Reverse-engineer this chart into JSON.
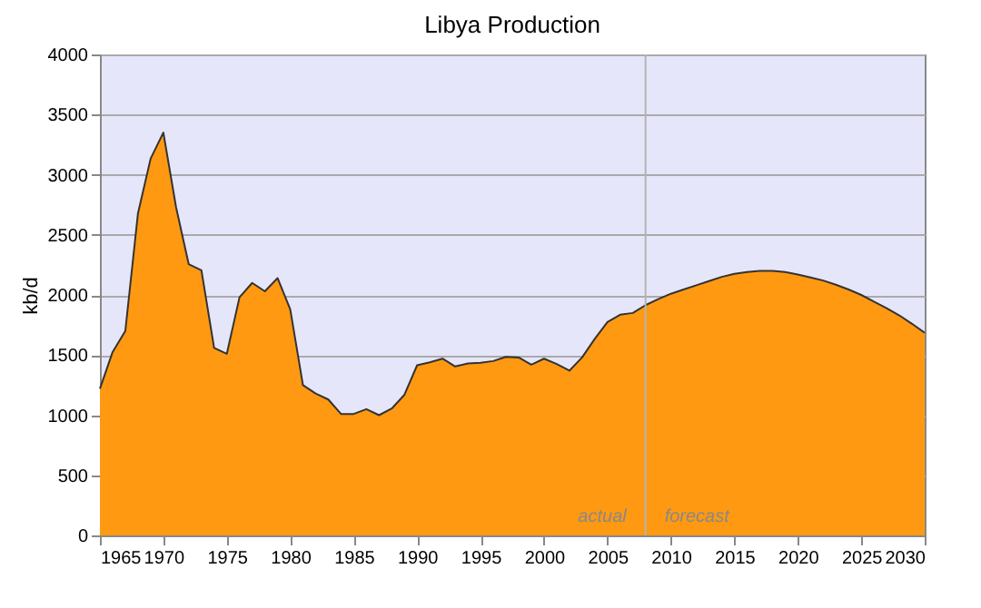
{
  "chart_data": {
    "type": "area",
    "title": "Libya Production",
    "ylabel": "kb/d",
    "x": [
      1965,
      1966,
      1967,
      1968,
      1969,
      1970,
      1971,
      1972,
      1973,
      1974,
      1975,
      1976,
      1977,
      1978,
      1979,
      1980,
      1981,
      1982,
      1983,
      1984,
      1985,
      1986,
      1987,
      1988,
      1989,
      1990,
      1991,
      1992,
      1993,
      1994,
      1995,
      1996,
      1997,
      1998,
      1999,
      2000,
      2001,
      2002,
      2003,
      2004,
      2005,
      2006,
      2007,
      2008,
      2009,
      2010,
      2011,
      2012,
      2013,
      2014,
      2015,
      2016,
      2017,
      2018,
      2019,
      2020,
      2021,
      2022,
      2023,
      2024,
      2025,
      2026,
      2027,
      2028,
      2029,
      2030
    ],
    "series": [
      {
        "color": "#ff9912",
        "values": [
          1220,
          1525,
          1700,
          2680,
          3135,
          3350,
          2730,
          2255,
          2205,
          1560,
          1510,
          1980,
          2100,
          2030,
          2140,
          1880,
          1250,
          1180,
          1130,
          1010,
          1010,
          1050,
          1000,
          1055,
          1170,
          1415,
          1440,
          1470,
          1405,
          1430,
          1435,
          1450,
          1485,
          1480,
          1420,
          1470,
          1425,
          1370,
          1480,
          1635,
          1775,
          1835,
          1850,
          1915,
          1965,
          2010,
          2045,
          2080,
          2115,
          2150,
          2175,
          2190,
          2200,
          2200,
          2190,
          2170,
          2145,
          2120,
          2085,
          2045,
          2000,
          1945,
          1890,
          1830,
          1760,
          1685
        ]
      }
    ],
    "xlim": [
      1965,
      2030
    ],
    "xticks": [
      1965,
      1970,
      1975,
      1980,
      1985,
      1990,
      1995,
      2000,
      2005,
      2010,
      2015,
      2020,
      2025,
      2030
    ],
    "ylim": [
      0,
      4000
    ],
    "yticks": [
      0,
      500,
      1000,
      1500,
      2000,
      2500,
      3000,
      3500,
      4000
    ],
    "grid": "y",
    "ref_lines": [
      {
        "axis": "x",
        "value": 2008,
        "color": "#b4b4b4"
      }
    ],
    "annotations": [
      {
        "text": "actual",
        "x": 2006.5,
        "y": 80
      },
      {
        "text": "forecast",
        "x": 2009.5,
        "y": 80
      }
    ]
  }
}
